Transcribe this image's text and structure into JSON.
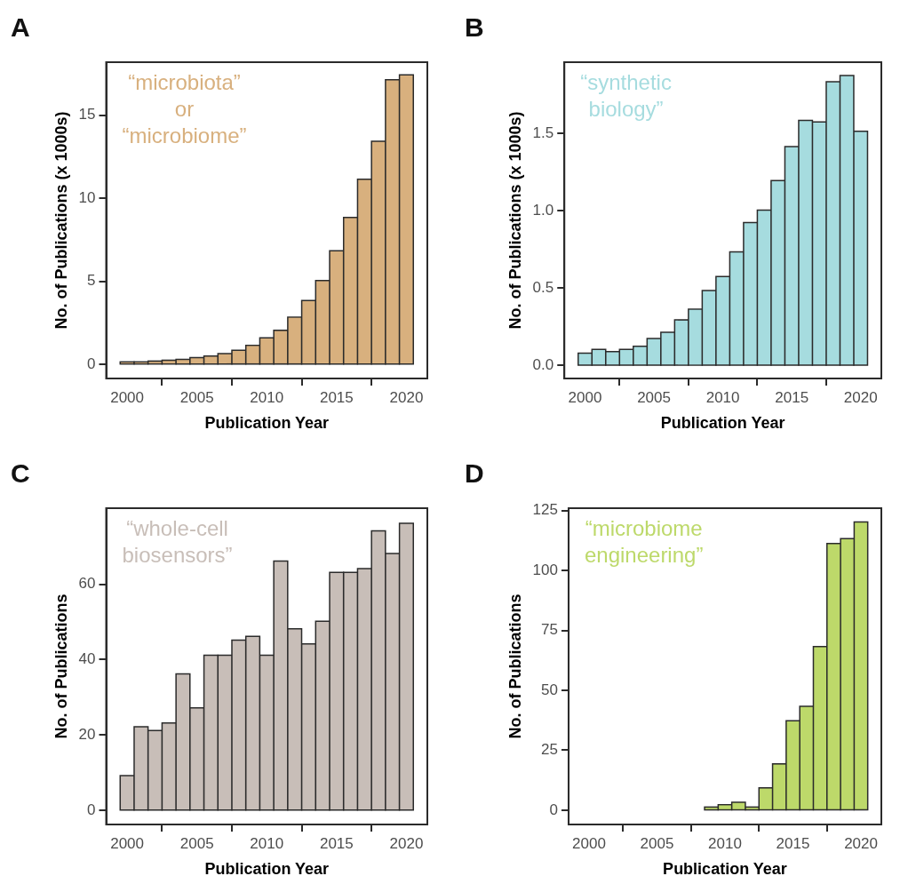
{
  "chart_data": [
    {
      "type": "bar",
      "title": "A",
      "xlabel": "Publication Year",
      "ylabel": "No. of Publications (x 1000s)",
      "annotations": [
        "“microbiota”\nor\n“microbiome”"
      ],
      "x": [
        2000,
        2001,
        2002,
        2003,
        2004,
        2005,
        2006,
        2007,
        2008,
        2009,
        2010,
        2011,
        2012,
        2013,
        2014,
        2015,
        2016,
        2017,
        2018,
        2019,
        2020
      ],
      "values": [
        0.1,
        0.1,
        0.15,
        0.2,
        0.25,
        0.36,
        0.45,
        0.6,
        0.8,
        1.1,
        1.55,
        2.0,
        2.8,
        3.8,
        5.0,
        6.8,
        8.8,
        11.1,
        13.4,
        17.1,
        17.4
      ],
      "color": "#d8b07e",
      "xlim": [
        1998.5,
        2021.5
      ],
      "xticks": [
        2000,
        2005,
        2010,
        2015,
        2020
      ],
      "ylim": [
        -0.86,
        18.2
      ],
      "yticks": [
        0,
        5,
        10,
        15
      ]
    },
    {
      "type": "bar",
      "title": "B",
      "xlabel": "Publication Year",
      "ylabel": "No. of Publications (x 1000s)",
      "annotations": [
        "“synthetic\nbiology”"
      ],
      "x": [
        2000,
        2001,
        2002,
        2003,
        2004,
        2005,
        2006,
        2007,
        2008,
        2009,
        2010,
        2011,
        2012,
        2013,
        2014,
        2015,
        2016,
        2017,
        2018,
        2019,
        2020
      ],
      "values": [
        0.076,
        0.1,
        0.086,
        0.1,
        0.12,
        0.17,
        0.21,
        0.29,
        0.36,
        0.48,
        0.57,
        0.73,
        0.92,
        1.0,
        1.19,
        1.41,
        1.58,
        1.57,
        1.83,
        1.87,
        1.51
      ],
      "color": "#a6dcdf",
      "xlim": [
        1998.5,
        2021.5
      ],
      "xticks": [
        2000,
        2005,
        2010,
        2015,
        2020
      ],
      "ylim": [
        -0.084,
        1.96
      ],
      "yticks": [
        {
          "value": 0,
          "label": "0.0"
        },
        {
          "value": 0.5,
          "label": "0.5"
        },
        {
          "value": 1,
          "label": "1.0"
        },
        {
          "value": 1.5,
          "label": "1.5"
        }
      ]
    },
    {
      "type": "bar",
      "title": "C",
      "xlabel": "Publication Year",
      "ylabel": "No. of Publications",
      "annotations": [
        "“whole-cell\nbiosensors”"
      ],
      "x": [
        2000,
        2001,
        2002,
        2003,
        2004,
        2005,
        2006,
        2007,
        2008,
        2009,
        2010,
        2011,
        2012,
        2013,
        2014,
        2015,
        2016,
        2017,
        2018,
        2019,
        2020
      ],
      "values": [
        9,
        22,
        21,
        23,
        36,
        27,
        41,
        41,
        45,
        46,
        41,
        66,
        48,
        44,
        50,
        63,
        63,
        64,
        74,
        68,
        76
      ],
      "color": "#c8beb8",
      "xlim": [
        1998.5,
        2021.5
      ],
      "xticks": [
        2000,
        2005,
        2010,
        2015,
        2020
      ],
      "ylim": [
        -3.8,
        80.2
      ],
      "yticks": [
        0,
        20,
        40,
        60
      ]
    },
    {
      "type": "bar",
      "title": "D",
      "xlabel": "Publication Year",
      "ylabel": "No. of Publications",
      "annotations": [
        "“microbiome\nengineering”"
      ],
      "x": [
        2000,
        2001,
        2002,
        2003,
        2004,
        2005,
        2006,
        2007,
        2008,
        2009,
        2010,
        2011,
        2012,
        2013,
        2014,
        2015,
        2016,
        2017,
        2018,
        2019,
        2020
      ],
      "values": [
        0,
        0,
        0,
        0,
        0,
        0,
        0,
        0,
        0,
        1,
        2,
        3,
        1,
        9,
        19,
        37,
        43,
        68,
        111,
        113,
        120
      ],
      "color": "#bdd96a",
      "xlim": [
        1998.5,
        2021.5
      ],
      "xticks": [
        2000,
        2005,
        2010,
        2015,
        2020
      ],
      "ylim": [
        -6,
        126
      ],
      "yticks": [
        0,
        25,
        50,
        75,
        100,
        125
      ]
    }
  ]
}
